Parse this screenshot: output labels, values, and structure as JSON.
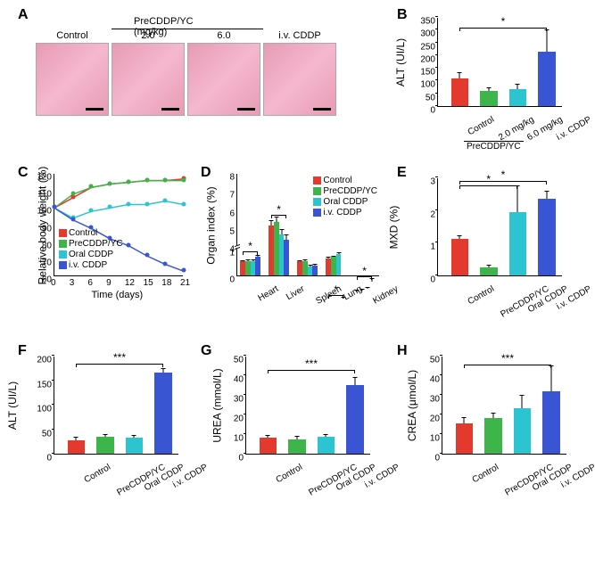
{
  "colors": {
    "control": "#e43a2e",
    "precddp": "#3eb54a",
    "oral": "#2bc4d0",
    "iv": "#3a55d4",
    "histology": "#e89bb5"
  },
  "panelA": {
    "label": "A",
    "header": "PreCDDP/YC (mg/kg)",
    "images": [
      {
        "label": "Control"
      },
      {
        "label": "2.0"
      },
      {
        "label": "6.0"
      },
      {
        "label": "i.v. CDDP"
      }
    ]
  },
  "panelB": {
    "label": "B",
    "ylabel": "ALT (UI/L)",
    "ylim": [
      0,
      350
    ],
    "ytick": 50,
    "groups": [
      "Control",
      "2.0 mg/kg",
      "6.0 mg/kg",
      "i.v. CDDP"
    ],
    "subgroup_line": "PreCDDP/YC",
    "values": [
      110,
      60,
      68,
      213
    ],
    "errors": [
      22,
      15,
      20,
      88
    ],
    "colors": [
      "#e43a2e",
      "#3eb54a",
      "#2bc4d0",
      "#3a55d4"
    ],
    "sig": [
      {
        "from": 0,
        "to": 3,
        "text": "*",
        "y": 310
      }
    ]
  },
  "panelC": {
    "label": "C",
    "ylabel": "Relative body weight (%)",
    "xlabel": "Time (days)",
    "ylim": [
      60,
      120
    ],
    "ytick": 10,
    "xlim": [
      0,
      21
    ],
    "xtick": 3,
    "legend": [
      "Control",
      "PreCDDP/YC",
      "Oral CDDP",
      "i.v. CDDP"
    ],
    "colors": [
      "#e43a2e",
      "#3eb54a",
      "#2bc4d0",
      "#3a55d4"
    ],
    "series": [
      {
        "x": [
          0,
          3,
          6,
          9,
          12,
          15,
          18,
          21
        ],
        "y": [
          100,
          106,
          112,
          114,
          115,
          116,
          116,
          117
        ],
        "c": "#e43a2e",
        "m": "sq"
      },
      {
        "x": [
          0,
          3,
          6,
          9,
          12,
          15,
          18,
          21
        ],
        "y": [
          100,
          108,
          112,
          114,
          115,
          116,
          116,
          116
        ],
        "c": "#3eb54a",
        "m": "circ"
      },
      {
        "x": [
          0,
          3,
          6,
          9,
          12,
          15,
          18,
          21
        ],
        "y": [
          100,
          94,
          98,
          100,
          102,
          102,
          104,
          102
        ],
        "c": "#2bc4d0",
        "m": "tri"
      },
      {
        "x": [
          0,
          3,
          6,
          9,
          12,
          15,
          18,
          21
        ],
        "y": [
          100,
          93,
          88,
          82,
          78,
          72,
          67,
          63
        ],
        "c": "#3a55d4",
        "m": "dtri"
      }
    ]
  },
  "panelD": {
    "label": "D",
    "ylabel": "Organ index (%)",
    "ylim": [
      0,
      8
    ],
    "yticks": [
      0,
      1,
      4,
      5,
      6,
      7,
      8
    ],
    "legend": [
      "Control",
      "PreCDDP/YC",
      "Oral CDDP",
      "i.v. CDDP"
    ],
    "colors": [
      "#e43a2e",
      "#3eb54a",
      "#2bc4d0",
      "#3a55d4"
    ],
    "organs": [
      "Heart",
      "Liver",
      "Spleen",
      "Lung",
      "Kidney"
    ],
    "values": [
      [
        0.52,
        0.54,
        0.55,
        0.7
      ],
      [
        5.1,
        5.3,
        4.6,
        4.3
      ],
      [
        0.52,
        0.55,
        0.35,
        0.38
      ],
      [
        0.65,
        0.7,
        0.8,
        1.05
      ],
      [
        1.45,
        1.5,
        1.6,
        2.0
      ]
    ],
    "errors": [
      [
        0.05,
        0.05,
        0.05,
        0.08
      ],
      [
        0.3,
        0.3,
        0.3,
        0.3
      ],
      [
        0.05,
        0.05,
        0.05,
        0.05
      ],
      [
        0.05,
        0.05,
        0.08,
        0.1
      ],
      [
        0.1,
        0.1,
        0.1,
        0.15
      ]
    ],
    "sig": [
      {
        "organ": 0,
        "text": "*"
      },
      {
        "organ": 1,
        "text": "*"
      },
      {
        "organ": 3,
        "text": "*"
      },
      {
        "organ": 4,
        "text": "*"
      }
    ]
  },
  "panelE": {
    "label": "E",
    "ylabel": "MXD (%)",
    "ylim": [
      0,
      3
    ],
    "ytick": 1,
    "groups": [
      "Control",
      "PreCDDP/YC",
      "Oral CDDP",
      "i.v. CDDP"
    ],
    "values": [
      1.12,
      0.25,
      1.95,
      2.35
    ],
    "errors": [
      0.12,
      0.08,
      0.8,
      0.25
    ],
    "colors": [
      "#e43a2e",
      "#3eb54a",
      "#2bc4d0",
      "#3a55d4"
    ],
    "sig": [
      {
        "from": 0,
        "to": 2,
        "text": "*",
        "y": 2.78
      },
      {
        "from": 0,
        "to": 3,
        "text": "*",
        "y": 2.92
      }
    ]
  },
  "panelF": {
    "label": "F",
    "ylabel": "ALT (UI/L)",
    "ylim": [
      0,
      200
    ],
    "ytick": 50,
    "groups": [
      "Control",
      "PreCDDP/YC",
      "Oral CDDP",
      "i.v. CDDP"
    ],
    "values": [
      28,
      35,
      33,
      165
    ],
    "errors": [
      7,
      5,
      5,
      10
    ],
    "colors": [
      "#e43a2e",
      "#3eb54a",
      "#2bc4d0",
      "#3a55d4"
    ],
    "sig": [
      {
        "from": 0,
        "to": 3,
        "text": "***",
        "y": 185
      }
    ]
  },
  "panelG": {
    "label": "G",
    "ylabel": "UREA (mmol/L)",
    "ylim": [
      0,
      50
    ],
    "ytick": 10,
    "groups": [
      "Control",
      "PreCDDP/YC",
      "Oral CDDP",
      "i.v. CDDP"
    ],
    "values": [
      8,
      7.5,
      8.5,
      35
    ],
    "errors": [
      1.5,
      1.5,
      1.5,
      4
    ],
    "colors": [
      "#e43a2e",
      "#3eb54a",
      "#2bc4d0",
      "#3a55d4"
    ],
    "sig": [
      {
        "from": 0,
        "to": 3,
        "text": "***",
        "y": 43
      }
    ]
  },
  "panelH": {
    "label": "H",
    "ylabel": "CREA (μmol/L)",
    "ylim": [
      0,
      50
    ],
    "ytick": 10,
    "groups": [
      "Control",
      "PreCDDP/YC",
      "Oral CDDP",
      "i.v. CDDP"
    ],
    "values": [
      15.5,
      18,
      23,
      32
    ],
    "errors": [
      3,
      3,
      7,
      13
    ],
    "colors": [
      "#e43a2e",
      "#3eb54a",
      "#2bc4d0",
      "#3a55d4"
    ],
    "sig": [
      {
        "from": 0,
        "to": 3,
        "text": "***",
        "y": 46
      }
    ]
  }
}
